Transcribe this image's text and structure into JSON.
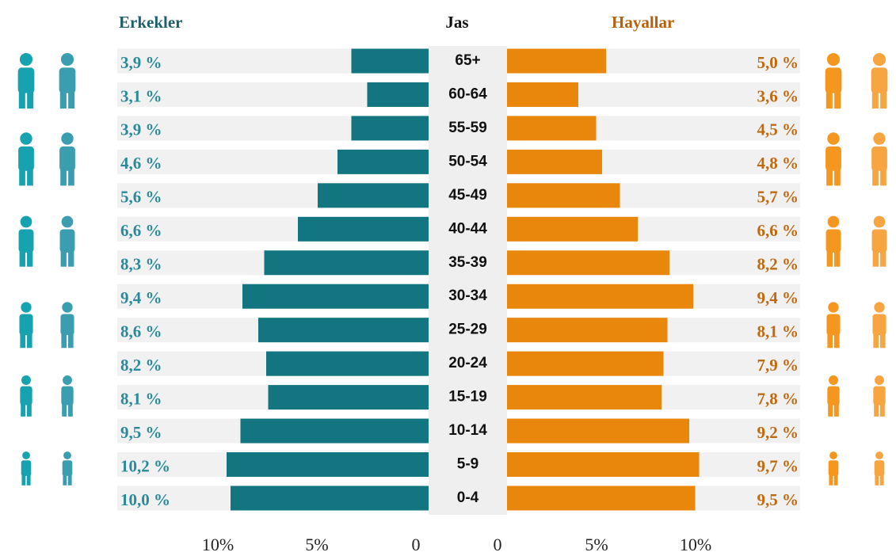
{
  "chart_data": {
    "type": "pyramid",
    "title_left": "Erkekler",
    "title_center": "Jas",
    "title_right": "Hayallar",
    "categories": [
      "65+",
      "60-64",
      "55-59",
      "50-54",
      "45-49",
      "40-44",
      "35-39",
      "30-34",
      "25-29",
      "20-24",
      "15-19",
      "10-14",
      "5-9",
      "0-4"
    ],
    "series": [
      {
        "name": "Erkekler",
        "color": "#137580",
        "values": [
          3.9,
          3.1,
          3.9,
          4.6,
          5.6,
          6.6,
          8.3,
          9.4,
          8.6,
          8.2,
          8.1,
          9.5,
          10.2,
          10.0
        ],
        "value_labels": [
          "3,9 %",
          "3,1 %",
          "3,9 %",
          "4,6 %",
          "5,6 %",
          "6,6 %",
          "8,3 %",
          "9,4 %",
          "8,6 %",
          "8,2 %",
          "8,1 %",
          "9,5 %",
          "10,2 %",
          "10,0 %"
        ]
      },
      {
        "name": "Hayallar",
        "color": "#e8870c",
        "values": [
          5.0,
          3.6,
          4.5,
          4.8,
          5.7,
          6.6,
          8.2,
          9.4,
          8.1,
          7.9,
          7.8,
          9.2,
          9.7,
          9.5
        ],
        "value_labels": [
          "5,0 %",
          "3,6 %",
          "4,5 %",
          "4,8 %",
          "5,7 %",
          "6,6 %",
          "8,2 %",
          "9,4 %",
          "8,1 %",
          "7,9 %",
          "7,8 %",
          "9,2 %",
          "9,7 %",
          "9,5 %"
        ]
      }
    ],
    "xlim": [
      0,
      12
    ],
    "xticks": [
      {
        "value": 10,
        "label": "10%"
      },
      {
        "value": 5,
        "label": "5%"
      },
      0
    ]
  }
}
